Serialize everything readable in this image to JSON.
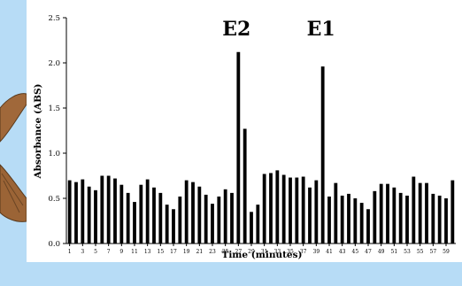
{
  "chart_data": {
    "type": "bar",
    "xlabel": "Time (minutes)",
    "ylabel": "Absorbance (ABS)",
    "ylim": [
      0,
      2.5
    ],
    "y_ticks": [
      "0.0",
      "0.5",
      "1.0",
      "1.5",
      "2.0",
      "2.5"
    ],
    "grid": false,
    "x": [
      1,
      2,
      3,
      4,
      5,
      6,
      7,
      8,
      9,
      10,
      11,
      12,
      13,
      14,
      15,
      16,
      17,
      18,
      19,
      20,
      21,
      22,
      23,
      24,
      25,
      26,
      27,
      28,
      29,
      30,
      31,
      32,
      33,
      34,
      35,
      36,
      37,
      38,
      39,
      40,
      41,
      42,
      43,
      44,
      45,
      46,
      47,
      48,
      49,
      50,
      51,
      52,
      53,
      54,
      55,
      56,
      57,
      58,
      59,
      60
    ],
    "x_tick_labels": [
      "1",
      "3",
      "5",
      "7",
      "9",
      "11",
      "13",
      "15",
      "17",
      "19",
      "21",
      "23",
      "25",
      "27",
      "29",
      "31",
      "33",
      "35",
      "37",
      "39",
      "41",
      "43",
      "45",
      "47",
      "49",
      "51",
      "53",
      "55",
      "57",
      "59"
    ],
    "values": [
      0.7,
      0.68,
      0.71,
      0.63,
      0.59,
      0.75,
      0.75,
      0.72,
      0.65,
      0.56,
      0.46,
      0.65,
      0.71,
      0.62,
      0.56,
      0.43,
      0.38,
      0.52,
      0.7,
      0.68,
      0.63,
      0.54,
      0.44,
      0.52,
      0.6,
      0.56,
      2.12,
      1.27,
      0.35,
      0.43,
      0.77,
      0.78,
      0.81,
      0.76,
      0.73,
      0.73,
      0.74,
      0.62,
      0.7,
      1.96,
      0.52,
      0.67,
      0.53,
      0.55,
      0.5,
      0.45,
      0.38,
      0.58,
      0.66,
      0.66,
      0.62,
      0.56,
      0.53,
      0.74,
      0.67,
      0.67,
      0.55,
      0.53,
      0.5,
      0.7
    ],
    "annotations": [
      {
        "text": "E2",
        "x": 27,
        "y": 2.12
      },
      {
        "text": "E1",
        "x": 40,
        "y": 1.96
      }
    ]
  },
  "colors": {
    "background": "#b7dcf6",
    "plot_background": "#ffffff",
    "bar": "#000000",
    "moth_wing": "#a0683a"
  },
  "icons": [
    "moth-wing-icon"
  ]
}
